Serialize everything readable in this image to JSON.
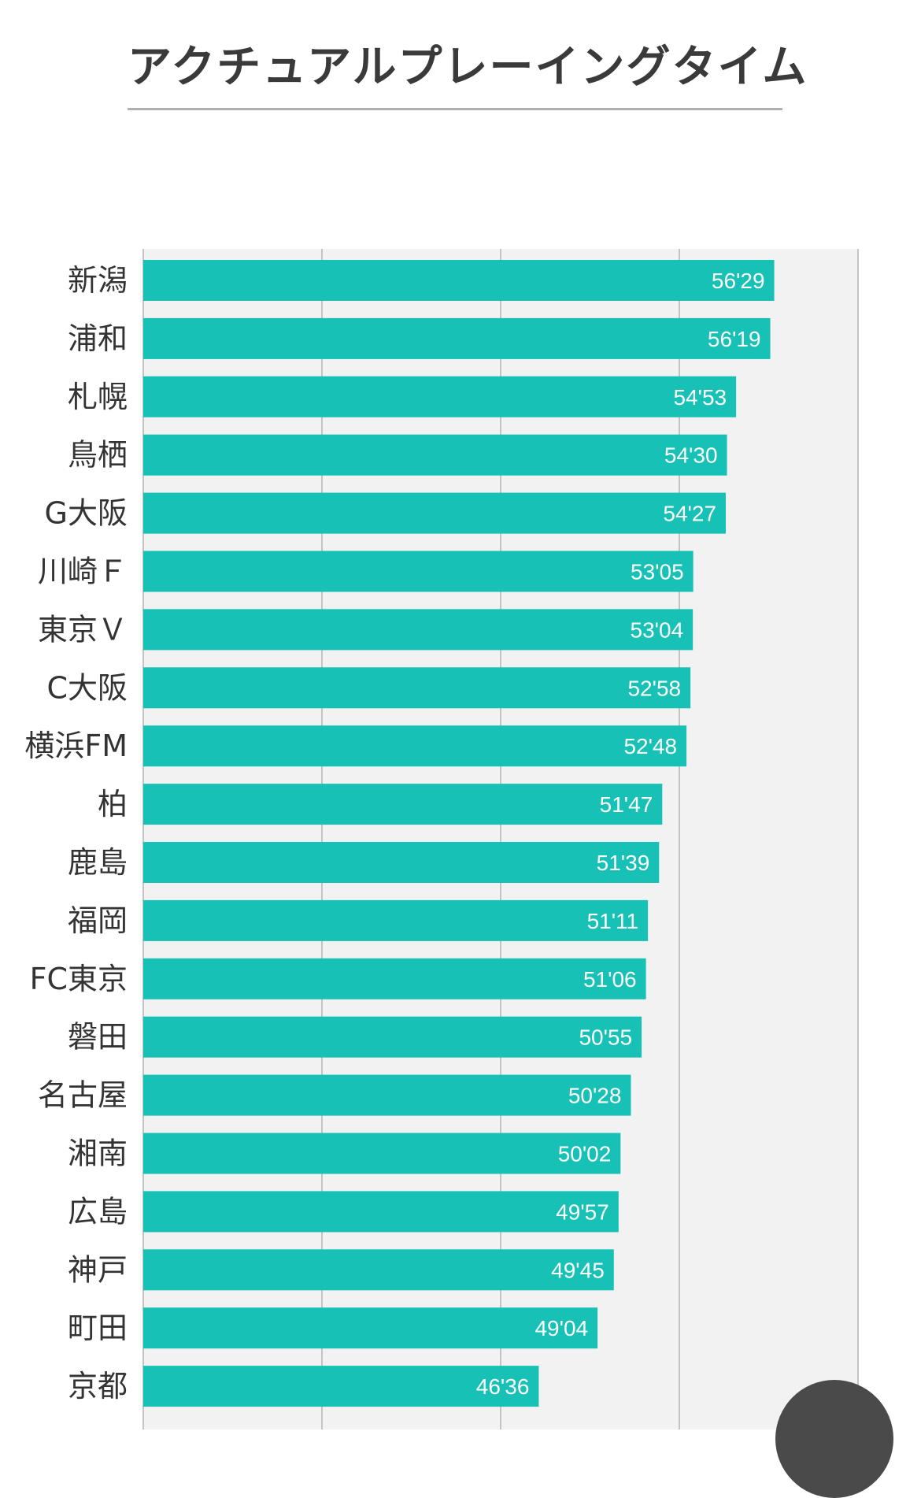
{
  "page": {
    "title": "アクチュアルプレーイングタイム"
  },
  "chart_data": {
    "type": "bar",
    "orientation": "horizontal",
    "grid": true,
    "bar_color": "#18c1b5",
    "background_color": "#f2f2f2",
    "categories": [
      "新潟",
      "浦和",
      "札幌",
      "鳥栖",
      "G大阪",
      "川崎Ｆ",
      "東京Ｖ",
      "C大阪",
      "横浜FM",
      "柏",
      "鹿島",
      "福岡",
      "FC東京",
      "磐田",
      "名古屋",
      "湘南",
      "広島",
      "神戸",
      "町田",
      "京都"
    ],
    "labels": [
      "56'29",
      "56'19",
      "54'53",
      "54'30",
      "54'27",
      "53'05",
      "53'04",
      "52'58",
      "52'48",
      "51'47",
      "51'39",
      "51'11",
      "51'06",
      "50'55",
      "50'28",
      "50'02",
      "49'57",
      "49'45",
      "49'04",
      "46'36"
    ],
    "values": [
      56.483,
      56.317,
      54.883,
      54.5,
      54.45,
      53.083,
      53.067,
      52.967,
      52.8,
      51.783,
      51.65,
      51.183,
      51.1,
      50.917,
      50.467,
      50.033,
      49.95,
      49.75,
      49.067,
      46.6
    ],
    "xlim": [
      30,
      60
    ],
    "gridlines": [
      30,
      37.5,
      45,
      52.5,
      60
    ]
  }
}
